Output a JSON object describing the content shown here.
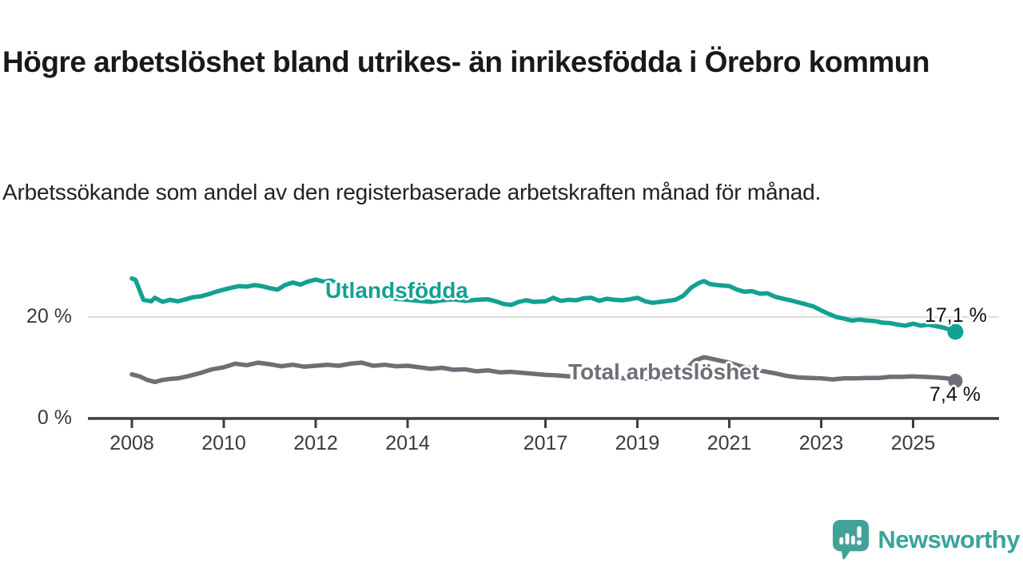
{
  "header": {
    "title": "Högre arbetslöshet bland utrikes- än inrikesfödda i Örebro kommun",
    "subtitle": "Arbetssökande som andel av den registerbaserade arbetskraften månad för månad."
  },
  "branding": {
    "logo_text": "Newsworthy",
    "color": "#3ba39a",
    "icon": "speech-bubble-bar-chart-exclamation"
  },
  "chart_data": {
    "type": "line",
    "title": "Högre arbetslöshet bland utrikes- än inrikesfödda i Örebro kommun",
    "subtitle": "Arbetssökande som andel av den registerbaserade arbetskraften månad för månad.",
    "grid": "horizontal-20-only",
    "legend_position": "inline-on-line",
    "x_axis": {
      "ticks": [
        2008,
        2010,
        2012,
        2014,
        2017,
        2019,
        2021,
        2023,
        2025
      ],
      "range": [
        2007.0,
        2026.9
      ]
    },
    "y_axis": {
      "unit": "%",
      "ticks": [
        {
          "value": 0,
          "label": "0 %"
        },
        {
          "value": 20,
          "label": "20 %"
        }
      ],
      "range": [
        0,
        30.5
      ]
    },
    "series": [
      {
        "name": "Utlandsfödda",
        "color": "#13a191",
        "end_label": "17,1 %",
        "end_value": 17.1,
        "points": [
          [
            2008.0,
            27.6
          ],
          [
            2008.08,
            27.3
          ],
          [
            2008.25,
            23.4
          ],
          [
            2008.42,
            23.1
          ],
          [
            2008.5,
            23.8
          ],
          [
            2008.67,
            23.0
          ],
          [
            2008.83,
            23.4
          ],
          [
            2009.0,
            23.1
          ],
          [
            2009.17,
            23.5
          ],
          [
            2009.33,
            23.9
          ],
          [
            2009.5,
            24.1
          ],
          [
            2009.67,
            24.5
          ],
          [
            2009.83,
            25.0
          ],
          [
            2010.0,
            25.4
          ],
          [
            2010.17,
            25.8
          ],
          [
            2010.33,
            26.1
          ],
          [
            2010.5,
            26.0
          ],
          [
            2010.67,
            26.3
          ],
          [
            2010.83,
            26.1
          ],
          [
            2011.0,
            25.7
          ],
          [
            2011.17,
            25.4
          ],
          [
            2011.33,
            26.3
          ],
          [
            2011.5,
            26.8
          ],
          [
            2011.67,
            26.4
          ],
          [
            2011.83,
            27.0
          ],
          [
            2012.0,
            27.4
          ],
          [
            2012.17,
            27.0
          ],
          [
            2012.33,
            27.2
          ],
          [
            2012.5,
            26.4
          ],
          [
            2012.75,
            25.6
          ],
          [
            2013.0,
            25.0
          ],
          [
            2013.25,
            24.4
          ],
          [
            2013.5,
            23.9
          ],
          [
            2013.75,
            23.6
          ],
          [
            2014.0,
            23.4
          ],
          [
            2014.25,
            23.2
          ],
          [
            2014.5,
            23.0
          ],
          [
            2014.75,
            23.3
          ],
          [
            2015.0,
            23.5
          ],
          [
            2015.25,
            23.2
          ],
          [
            2015.5,
            23.4
          ],
          [
            2015.75,
            23.5
          ],
          [
            2015.92,
            23.1
          ],
          [
            2016.08,
            22.6
          ],
          [
            2016.25,
            22.4
          ],
          [
            2016.42,
            23.0
          ],
          [
            2016.58,
            23.3
          ],
          [
            2016.75,
            23.0
          ],
          [
            2017.0,
            23.1
          ],
          [
            2017.17,
            23.8
          ],
          [
            2017.33,
            23.2
          ],
          [
            2017.5,
            23.4
          ],
          [
            2017.67,
            23.3
          ],
          [
            2017.83,
            23.7
          ],
          [
            2018.0,
            23.8
          ],
          [
            2018.17,
            23.2
          ],
          [
            2018.33,
            23.6
          ],
          [
            2018.5,
            23.4
          ],
          [
            2018.67,
            23.3
          ],
          [
            2018.83,
            23.5
          ],
          [
            2019.0,
            23.8
          ],
          [
            2019.17,
            23.1
          ],
          [
            2019.33,
            22.8
          ],
          [
            2019.5,
            23.0
          ],
          [
            2019.67,
            23.2
          ],
          [
            2019.83,
            23.4
          ],
          [
            2020.0,
            24.2
          ],
          [
            2020.17,
            25.8
          ],
          [
            2020.33,
            26.7
          ],
          [
            2020.45,
            27.1
          ],
          [
            2020.58,
            26.5
          ],
          [
            2020.75,
            26.3
          ],
          [
            2021.0,
            26.1
          ],
          [
            2021.17,
            25.4
          ],
          [
            2021.33,
            25.0
          ],
          [
            2021.5,
            25.1
          ],
          [
            2021.67,
            24.6
          ],
          [
            2021.83,
            24.7
          ],
          [
            2022.0,
            24.0
          ],
          [
            2022.17,
            23.6
          ],
          [
            2022.33,
            23.3
          ],
          [
            2022.5,
            22.9
          ],
          [
            2022.67,
            22.5
          ],
          [
            2022.83,
            22.1
          ],
          [
            2023.0,
            21.3
          ],
          [
            2023.17,
            20.6
          ],
          [
            2023.33,
            20.0
          ],
          [
            2023.5,
            19.7
          ],
          [
            2023.67,
            19.3
          ],
          [
            2023.83,
            19.5
          ],
          [
            2024.0,
            19.3
          ],
          [
            2024.17,
            19.2
          ],
          [
            2024.33,
            18.9
          ],
          [
            2024.5,
            18.8
          ],
          [
            2024.67,
            18.5
          ],
          [
            2024.83,
            18.3
          ],
          [
            2025.0,
            18.7
          ],
          [
            2025.17,
            18.3
          ],
          [
            2025.33,
            18.5
          ],
          [
            2025.5,
            18.2
          ],
          [
            2025.67,
            17.9
          ],
          [
            2025.83,
            17.4
          ],
          [
            2025.92,
            17.1
          ]
        ]
      },
      {
        "name": "Total arbetslöshet",
        "color": "#6e6e76",
        "end_label": "7,4 %",
        "end_value": 7.4,
        "points": [
          [
            2008.0,
            8.7
          ],
          [
            2008.17,
            8.3
          ],
          [
            2008.33,
            7.6
          ],
          [
            2008.5,
            7.2
          ],
          [
            2008.67,
            7.6
          ],
          [
            2008.83,
            7.8
          ],
          [
            2009.0,
            7.9
          ],
          [
            2009.25,
            8.4
          ],
          [
            2009.5,
            9.0
          ],
          [
            2009.75,
            9.7
          ],
          [
            2010.0,
            10.1
          ],
          [
            2010.25,
            10.8
          ],
          [
            2010.5,
            10.5
          ],
          [
            2010.75,
            11.0
          ],
          [
            2011.0,
            10.7
          ],
          [
            2011.25,
            10.3
          ],
          [
            2011.5,
            10.6
          ],
          [
            2011.75,
            10.2
          ],
          [
            2012.0,
            10.4
          ],
          [
            2012.25,
            10.6
          ],
          [
            2012.5,
            10.4
          ],
          [
            2012.75,
            10.8
          ],
          [
            2013.0,
            11.0
          ],
          [
            2013.25,
            10.4
          ],
          [
            2013.5,
            10.6
          ],
          [
            2013.75,
            10.3
          ],
          [
            2014.0,
            10.4
          ],
          [
            2014.25,
            10.1
          ],
          [
            2014.5,
            9.8
          ],
          [
            2014.75,
            10.0
          ],
          [
            2015.0,
            9.6
          ],
          [
            2015.25,
            9.7
          ],
          [
            2015.5,
            9.3
          ],
          [
            2015.75,
            9.5
          ],
          [
            2016.0,
            9.1
          ],
          [
            2016.25,
            9.2
          ],
          [
            2016.5,
            9.0
          ],
          [
            2016.75,
            8.8
          ],
          [
            2017.0,
            8.6
          ],
          [
            2017.25,
            8.5
          ],
          [
            2017.5,
            8.3
          ],
          [
            2017.75,
            8.4
          ],
          [
            2018.0,
            8.2
          ],
          [
            2018.25,
            8.0
          ],
          [
            2018.5,
            8.1
          ],
          [
            2018.75,
            7.9
          ],
          [
            2019.0,
            8.0
          ],
          [
            2019.25,
            7.8
          ],
          [
            2019.5,
            7.9
          ],
          [
            2019.75,
            8.2
          ],
          [
            2020.0,
            9.2
          ],
          [
            2020.25,
            11.4
          ],
          [
            2020.45,
            12.1
          ],
          [
            2020.6,
            11.8
          ],
          [
            2020.8,
            11.4
          ],
          [
            2021.0,
            11.0
          ],
          [
            2021.25,
            10.3
          ],
          [
            2021.5,
            9.8
          ],
          [
            2021.75,
            9.3
          ],
          [
            2022.0,
            8.9
          ],
          [
            2022.25,
            8.4
          ],
          [
            2022.5,
            8.1
          ],
          [
            2022.75,
            8.0
          ],
          [
            2023.0,
            7.9
          ],
          [
            2023.25,
            7.7
          ],
          [
            2023.5,
            7.9
          ],
          [
            2023.75,
            7.9
          ],
          [
            2024.0,
            8.0
          ],
          [
            2024.25,
            8.0
          ],
          [
            2024.5,
            8.2
          ],
          [
            2024.75,
            8.2
          ],
          [
            2025.0,
            8.3
          ],
          [
            2025.25,
            8.2
          ],
          [
            2025.5,
            8.1
          ],
          [
            2025.75,
            7.9
          ],
          [
            2025.92,
            7.4
          ]
        ]
      }
    ]
  }
}
